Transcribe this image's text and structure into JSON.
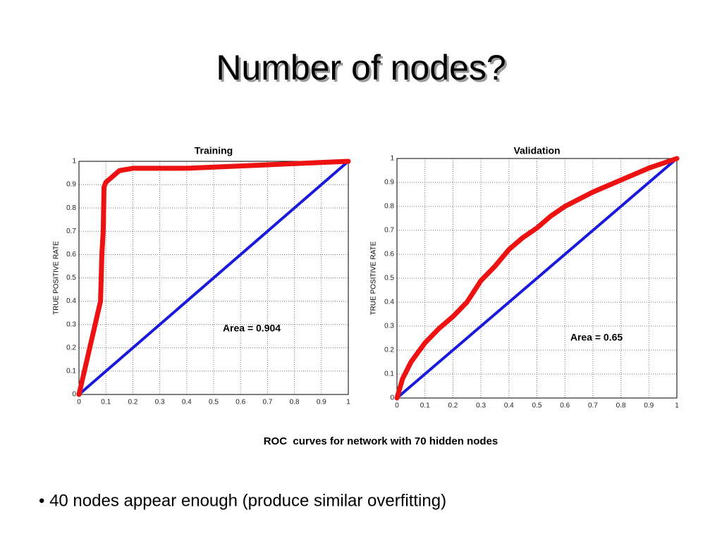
{
  "slide": {
    "title": "Number of nodes?",
    "caption": "ROC  curves for network with 70 hidden nodes",
    "bullet": "• 40 nodes appear enough (produce similar overfitting)"
  },
  "chart_data": [
    {
      "type": "line",
      "title": "Training",
      "y_label": "TRUE POSITIVE RATE",
      "annotation": "Area = 0.904",
      "xlim": [
        0,
        1
      ],
      "ylim": [
        0,
        1
      ],
      "xticks": [
        0,
        0.1,
        0.2,
        0.3,
        0.4,
        0.5,
        0.6,
        0.7,
        0.8,
        0.9,
        1
      ],
      "yticks": [
        0,
        0.1,
        0.2,
        0.3,
        0.4,
        0.5,
        0.6,
        0.7,
        0.8,
        0.9,
        1
      ],
      "grid": true,
      "series": [
        {
          "color": "#ee1111",
          "x": [
            0,
            0.02,
            0.04,
            0.06,
            0.07,
            0.08,
            0.085,
            0.09,
            0.093,
            0.1,
            0.15,
            0.2,
            0.4,
            0.6,
            0.8,
            0.9,
            1
          ],
          "values": [
            0,
            0.1,
            0.2,
            0.3,
            0.35,
            0.4,
            0.6,
            0.7,
            0.89,
            0.91,
            0.96,
            0.97,
            0.97,
            0.98,
            0.99,
            0.995,
            1
          ]
        },
        {
          "color": "#1a1adc",
          "x": [
            0,
            1
          ],
          "values": [
            0,
            1
          ]
        }
      ]
    },
    {
      "type": "line",
      "title": "Validation",
      "y_label": "TRUE POSITIVE RATE",
      "annotation": "Area = 0.65",
      "xlim": [
        0,
        1
      ],
      "ylim": [
        0,
        1
      ],
      "xticks": [
        0,
        0.1,
        0.2,
        0.3,
        0.4,
        0.5,
        0.6,
        0.7,
        0.8,
        0.9,
        1
      ],
      "yticks": [
        0,
        0.1,
        0.2,
        0.3,
        0.4,
        0.5,
        0.6,
        0.7,
        0.8,
        0.9,
        1
      ],
      "grid": true,
      "series": [
        {
          "color": "#ee1111",
          "x": [
            0,
            0.02,
            0.05,
            0.1,
            0.15,
            0.2,
            0.25,
            0.3,
            0.35,
            0.4,
            0.45,
            0.5,
            0.55,
            0.6,
            0.7,
            0.8,
            0.9,
            1
          ],
          "values": [
            0,
            0.08,
            0.15,
            0.23,
            0.29,
            0.34,
            0.4,
            0.49,
            0.55,
            0.62,
            0.67,
            0.71,
            0.76,
            0.8,
            0.86,
            0.91,
            0.96,
            1
          ]
        },
        {
          "color": "#1a1adc",
          "x": [
            0,
            1
          ],
          "values": [
            0,
            1
          ]
        }
      ]
    }
  ]
}
